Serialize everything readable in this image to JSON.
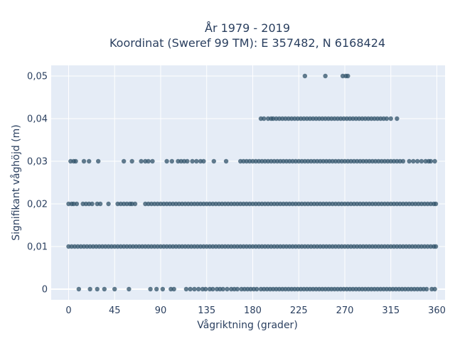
{
  "chart_data": {
    "type": "scatter",
    "title_line1": "År 1979 - 2019",
    "title_line2": "Koordinat (Sweref 99 TM): E 357482, N 6168424",
    "xlabel": "Vågriktning (grader)",
    "ylabel": "Signifikant våghöjd (m)",
    "xlim": [
      -17,
      368
    ],
    "ylim": [
      -0.0025,
      0.0525
    ],
    "x_ticks": [
      0,
      45,
      90,
      135,
      180,
      225,
      270,
      315,
      360
    ],
    "x_tick_labels": [
      "0",
      "45",
      "90",
      "135",
      "180",
      "225",
      "270",
      "315",
      "360"
    ],
    "y_ticks": [
      0,
      0.01,
      0.02,
      0.03,
      0.04,
      0.05
    ],
    "y_tick_labels": [
      "0",
      "0,01",
      "0,02",
      "0,03",
      "0,04",
      "0,05"
    ],
    "grid": true,
    "marker_color": "#2f5168",
    "plot_bg": "#e5ecf6",
    "series": [
      {
        "y": 0.05,
        "x": [
          231,
          251,
          268,
          271,
          273
        ]
      },
      {
        "y": 0.04,
        "x": [
          188,
          191,
          195,
          198,
          200,
          203,
          206,
          209,
          212,
          215,
          218,
          221,
          224,
          227,
          230,
          233,
          236,
          239,
          242,
          245,
          248,
          251,
          254,
          257,
          260,
          263,
          266,
          269,
          272,
          275,
          278,
          281,
          284,
          287,
          290,
          293,
          296,
          299,
          302,
          305,
          308,
          311,
          315,
          321
        ]
      },
      {
        "y": 0.03,
        "x": [
          2,
          5,
          7,
          15,
          20,
          29,
          54,
          62,
          71,
          75,
          78,
          82,
          96,
          101,
          107,
          110,
          113,
          116,
          121,
          125,
          129,
          132,
          142,
          154,
          168,
          171,
          174,
          177,
          180,
          183,
          186,
          189,
          192,
          195,
          198,
          201,
          204,
          207,
          210,
          213,
          216,
          219,
          222,
          225,
          228,
          231,
          234,
          237,
          240,
          243,
          246,
          249,
          252,
          255,
          258,
          261,
          264,
          267,
          270,
          273,
          276,
          279,
          282,
          285,
          288,
          291,
          294,
          297,
          300,
          303,
          306,
          309,
          312,
          315,
          318,
          321,
          324,
          327,
          333,
          337,
          341,
          345,
          349,
          352,
          354,
          358
        ]
      },
      {
        "y": 0.02,
        "x": [
          0,
          3,
          5,
          8,
          14,
          17,
          20,
          23,
          28,
          31,
          39,
          48,
          51,
          54,
          57,
          60,
          62,
          65,
          75,
          78,
          81,
          84,
          87,
          90,
          93,
          96,
          99,
          102,
          105,
          108,
          111,
          114,
          117,
          120,
          123,
          126,
          129,
          132,
          135,
          138,
          141,
          144,
          147,
          150,
          153,
          156,
          159,
          162,
          165,
          168,
          171,
          174,
          177,
          180,
          183,
          186,
          189,
          192,
          195,
          198,
          201,
          204,
          207,
          210,
          213,
          216,
          219,
          222,
          225,
          228,
          231,
          234,
          237,
          240,
          243,
          246,
          249,
          252,
          255,
          258,
          261,
          264,
          267,
          270,
          273,
          276,
          279,
          282,
          285,
          288,
          291,
          294,
          297,
          300,
          303,
          306,
          309,
          312,
          315,
          318,
          321,
          324,
          327,
          330,
          333,
          336,
          339,
          342,
          345,
          348,
          351,
          354,
          357,
          359
        ]
      },
      {
        "y": 0.01,
        "x": [
          0,
          3,
          6,
          9,
          12,
          15,
          18,
          21,
          24,
          27,
          30,
          33,
          36,
          39,
          42,
          45,
          48,
          51,
          54,
          57,
          60,
          63,
          66,
          69,
          72,
          75,
          78,
          81,
          84,
          87,
          90,
          93,
          96,
          99,
          102,
          105,
          108,
          111,
          114,
          117,
          120,
          123,
          126,
          129,
          132,
          135,
          138,
          141,
          144,
          147,
          150,
          153,
          156,
          159,
          162,
          165,
          168,
          171,
          174,
          177,
          180,
          183,
          186,
          189,
          192,
          195,
          198,
          201,
          204,
          207,
          210,
          213,
          216,
          219,
          222,
          225,
          228,
          231,
          234,
          237,
          240,
          243,
          246,
          249,
          252,
          255,
          258,
          261,
          264,
          267,
          270,
          273,
          276,
          279,
          282,
          285,
          288,
          291,
          294,
          297,
          300,
          303,
          306,
          309,
          312,
          315,
          318,
          321,
          324,
          327,
          330,
          333,
          336,
          339,
          342,
          345,
          348,
          351,
          354,
          357,
          359
        ]
      },
      {
        "y": 0,
        "x": [
          10,
          21,
          28,
          35,
          45,
          59,
          80,
          86,
          92,
          100,
          103,
          115,
          119,
          123,
          127,
          131,
          134,
          138,
          141,
          145,
          148,
          151,
          155,
          159,
          162,
          165,
          169,
          172,
          175,
          178,
          181,
          184,
          188,
          191,
          194,
          197,
          200,
          203,
          206,
          209,
          212,
          215,
          218,
          221,
          224,
          227,
          230,
          233,
          236,
          239,
          242,
          245,
          248,
          251,
          254,
          257,
          260,
          263,
          266,
          269,
          272,
          275,
          278,
          281,
          284,
          287,
          290,
          293,
          296,
          299,
          302,
          305,
          308,
          311,
          314,
          317,
          320,
          323,
          326,
          329,
          332,
          335,
          338,
          341,
          344,
          347,
          350,
          355,
          358
        ]
      }
    ]
  }
}
